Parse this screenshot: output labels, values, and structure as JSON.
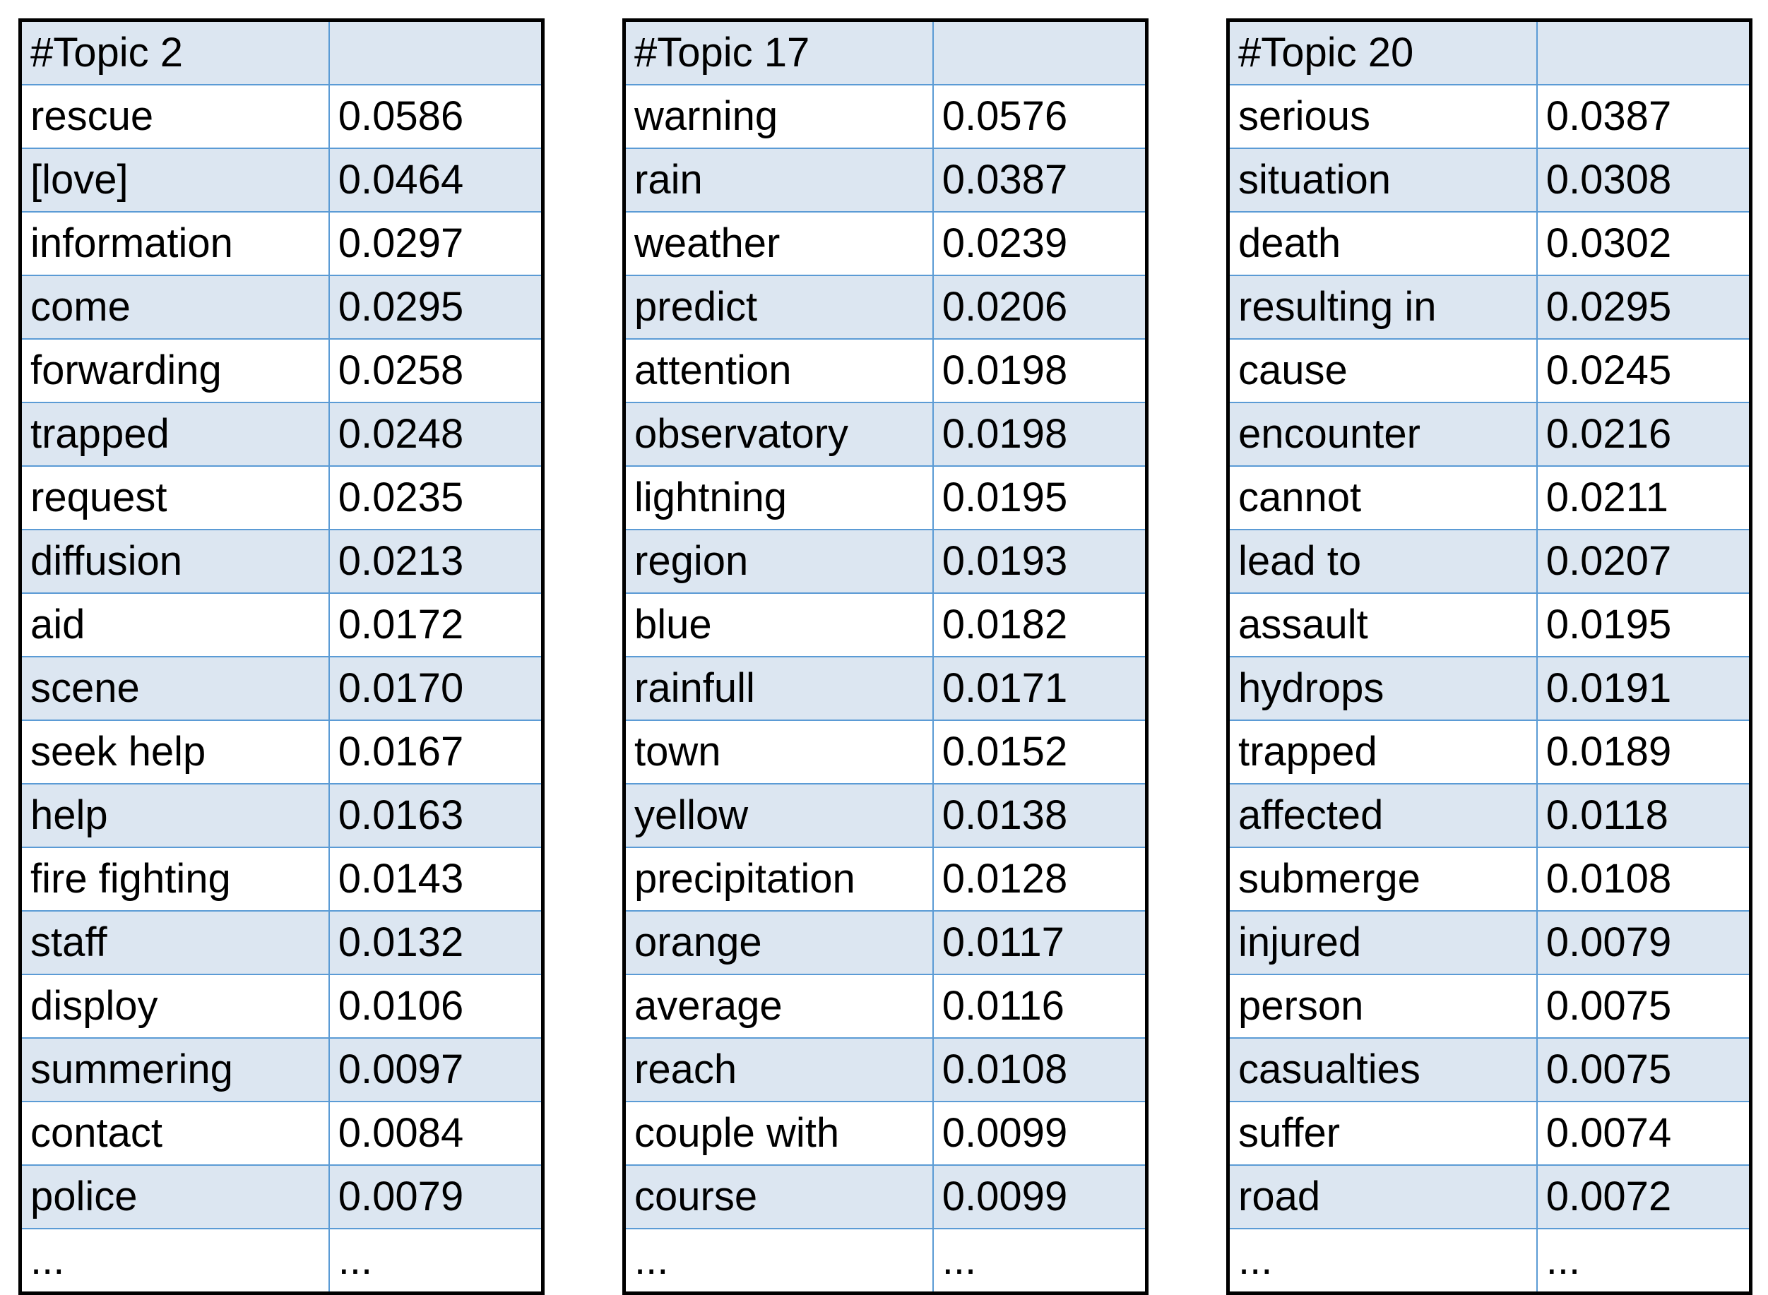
{
  "tables": [
    {
      "header": [
        "#Topic 2",
        ""
      ],
      "rows": [
        [
          "rescue",
          "0.0586"
        ],
        [
          "[love]",
          "0.0464"
        ],
        [
          "information",
          "0.0297"
        ],
        [
          "come",
          "0.0295"
        ],
        [
          "forwarding",
          "0.0258"
        ],
        [
          "trapped",
          "0.0248"
        ],
        [
          "request",
          "0.0235"
        ],
        [
          "diffusion",
          "0.0213"
        ],
        [
          "aid",
          "0.0172"
        ],
        [
          "scene",
          "0.0170"
        ],
        [
          "seek help",
          "0.0167"
        ],
        [
          "help",
          "0.0163"
        ],
        [
          "fire fighting",
          "0.0143"
        ],
        [
          "staff",
          "0.0132"
        ],
        [
          "disploy",
          "0.0106"
        ],
        [
          "summering",
          "0.0097"
        ],
        [
          "contact",
          "0.0084"
        ],
        [
          "police",
          "0.0079"
        ],
        [
          "...",
          "..."
        ]
      ]
    },
    {
      "header": [
        "#Topic 17",
        ""
      ],
      "rows": [
        [
          "warning",
          "0.0576"
        ],
        [
          "rain",
          "0.0387"
        ],
        [
          "weather",
          "0.0239"
        ],
        [
          "predict",
          "0.0206"
        ],
        [
          "attention",
          "0.0198"
        ],
        [
          "observatory",
          "0.0198"
        ],
        [
          "lightning",
          "0.0195"
        ],
        [
          "region",
          "0.0193"
        ],
        [
          "blue",
          "0.0182"
        ],
        [
          "rainfull",
          "0.0171"
        ],
        [
          "town",
          "0.0152"
        ],
        [
          "yellow",
          "0.0138"
        ],
        [
          "precipitation",
          "0.0128"
        ],
        [
          "orange",
          "0.0117"
        ],
        [
          "average",
          "0.0116"
        ],
        [
          "reach",
          "0.0108"
        ],
        [
          "couple with",
          "0.0099"
        ],
        [
          "course",
          "0.0099"
        ],
        [
          "...",
          "..."
        ]
      ]
    },
    {
      "header": [
        "#Topic 20",
        ""
      ],
      "rows": [
        [
          "serious",
          "0.0387"
        ],
        [
          "situation",
          "0.0308"
        ],
        [
          "death",
          "0.0302"
        ],
        [
          "resulting in",
          "0.0295"
        ],
        [
          "cause",
          "0.0245"
        ],
        [
          "encounter",
          "0.0216"
        ],
        [
          "cannot",
          "0.0211"
        ],
        [
          "lead to",
          "0.0207"
        ],
        [
          "assault",
          "0.0195"
        ],
        [
          "hydrops",
          "0.0191"
        ],
        [
          "trapped",
          "0.0189"
        ],
        [
          "affected",
          "0.0118"
        ],
        [
          "submerge",
          "0.0108"
        ],
        [
          "injured",
          "0.0079"
        ],
        [
          "person",
          "0.0075"
        ],
        [
          "casualties",
          "0.0075"
        ],
        [
          "suffer",
          "0.0074"
        ],
        [
          "road",
          "0.0072"
        ],
        [
          "...",
          "..."
        ]
      ]
    }
  ]
}
